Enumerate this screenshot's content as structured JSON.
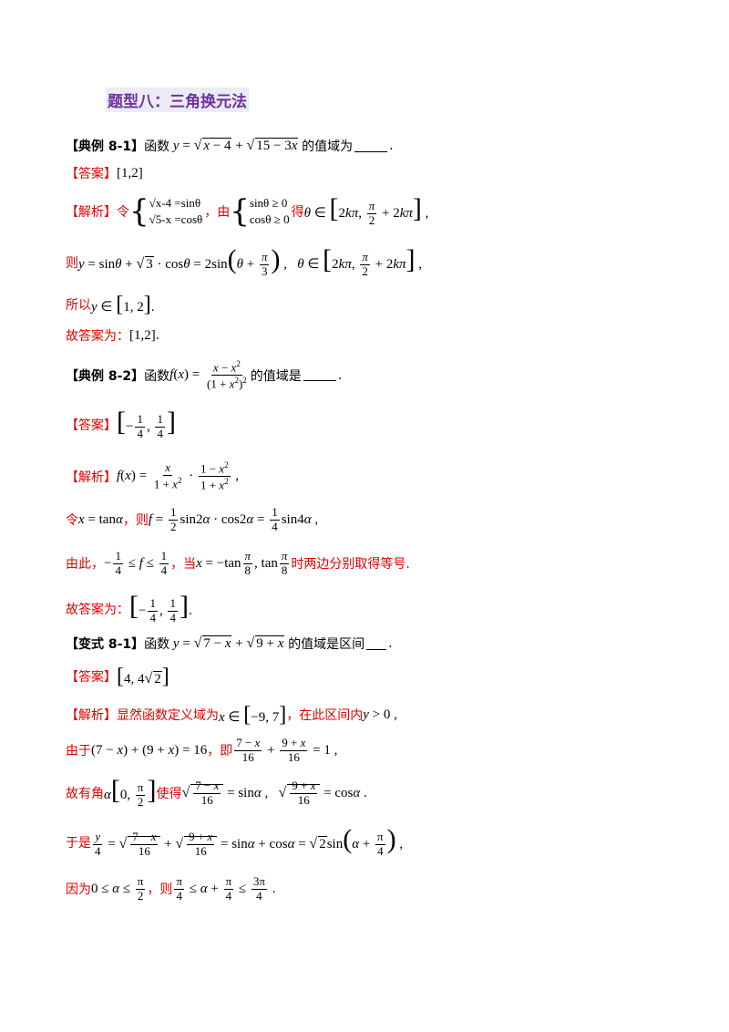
{
  "title": "题型八：三角换元法",
  "ex81": {
    "tag": "【典例 8-1】",
    "text": "函数",
    "tail": "的值域为",
    "answer_tag": "【答案】",
    "answer": "[1,2]",
    "analysis_tag": "【解析】",
    "ling": "令",
    "sys1a": "√x-4 =sinθ",
    "sys1b": "√5-x =cosθ",
    "you": "，由",
    "sys2a": "sinθ ≥ 0",
    "sys2b": "cosθ ≥ 0",
    "de": "得",
    "ze": "则",
    "suoyi": "所以",
    "final": "故答案为："
  },
  "ex82": {
    "tag": "【典例 8-2】",
    "text": "函数",
    "tail": "的值域是",
    "answer_tag": "【答案】",
    "analysis_tag": "【解析】",
    "ling": "令",
    "ze": "，则",
    "youci": "由此，",
    "dang": "，当",
    "dang_tail": "时两边分别取得等号.",
    "final": "故答案为："
  },
  "var81": {
    "tag": "【变式 8-1】",
    "text": "函数",
    "tail": "的值域是区间",
    "answer_tag": "【答案】",
    "analysis_tag": "【解析】",
    "a1": "显然函数定义域为",
    "a1b": "，在此区间内",
    "youyu": "由于",
    "ji": "，即",
    "guyou": "故有角",
    "shide": "使得",
    "yushi": "于是",
    "yinwei": "因为",
    "ze": "，则"
  }
}
